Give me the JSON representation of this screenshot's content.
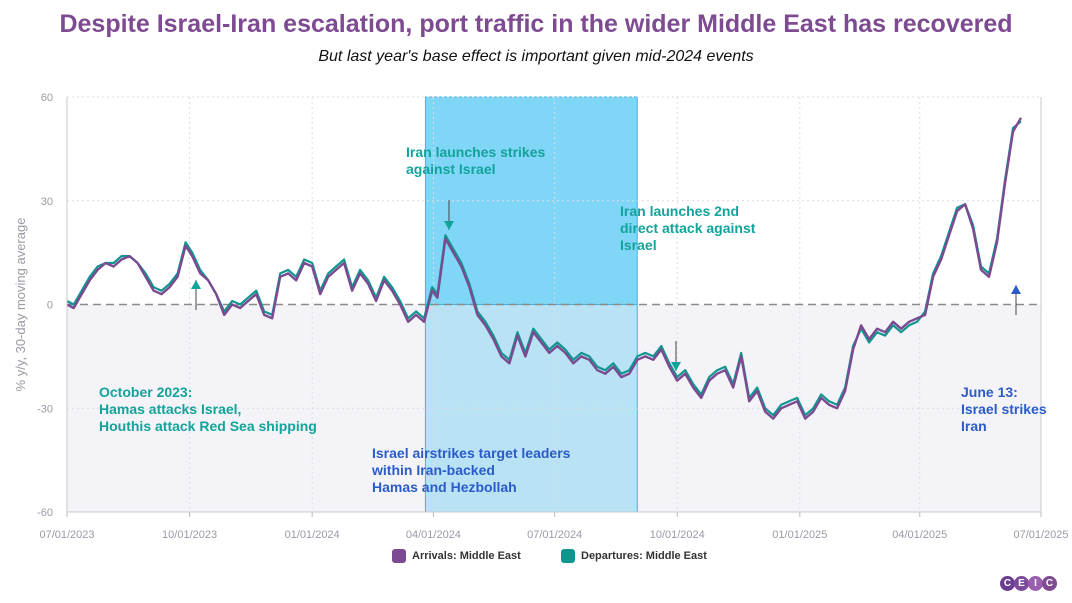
{
  "title": "Despite Israel-Iran escalation, port traffic in the wider Middle East has recovered",
  "subtitle": "But last year's base effect is important given mid-2024 events",
  "colors": {
    "arrivals": "#7b4a91",
    "departures": "#10958f",
    "teal_text": "#12a39a",
    "blue_text": "#2a5bc8",
    "band_top": "#7fd6f7",
    "band_bottom": "#b9e2f4",
    "negative_area": "#f4f4f8"
  },
  "logo": [
    "C",
    "E",
    "I",
    "C"
  ],
  "chart_data": {
    "type": "line",
    "title": "Despite Israel-Iran escalation, port traffic in the wider Middle East has recovered",
    "subtitle": "But last year's base effect is important given mid-2024 events",
    "xlabel": "",
    "ylabel": "% y/y, 30-day moving average",
    "ylim": [
      -60,
      60
    ],
    "yticks": [
      60,
      30,
      0,
      -30,
      -60
    ],
    "xlim": [
      "2023-07-01",
      "2025-07-01"
    ],
    "xticks": [
      "07/01/2023",
      "10/01/2023",
      "01/01/2024",
      "04/01/2024",
      "07/01/2024",
      "10/01/2024",
      "01/01/2025",
      "04/01/2025",
      "07/01/2025"
    ],
    "x_tick_dates": [
      "2023-07-01",
      "2023-10-01",
      "2024-01-01",
      "2024-04-01",
      "2024-07-01",
      "2024-10-01",
      "2025-01-01",
      "2025-04-01",
      "2025-07-01"
    ],
    "grid": true,
    "zero_line": "dashed",
    "legend": "bottom",
    "shaded_period": [
      "2024-03-26",
      "2024-09-01"
    ],
    "series": [
      {
        "name": "Arrivals: Middle East",
        "color": "#7b4a91",
        "points": [
          [
            "2023-07-01",
            0
          ],
          [
            "2023-07-06",
            -1
          ],
          [
            "2023-07-12",
            3
          ],
          [
            "2023-07-18",
            7
          ],
          [
            "2023-07-24",
            10
          ],
          [
            "2023-07-30",
            12
          ],
          [
            "2023-08-05",
            11
          ],
          [
            "2023-08-11",
            13
          ],
          [
            "2023-08-17",
            14
          ],
          [
            "2023-08-23",
            12
          ],
          [
            "2023-08-29",
            8
          ],
          [
            "2023-09-04",
            4
          ],
          [
            "2023-09-10",
            3
          ],
          [
            "2023-09-16",
            5
          ],
          [
            "2023-09-22",
            8
          ],
          [
            "2023-09-28",
            17
          ],
          [
            "2023-10-03",
            14
          ],
          [
            "2023-10-09",
            9
          ],
          [
            "2023-10-15",
            7
          ],
          [
            "2023-10-21",
            3
          ],
          [
            "2023-10-27",
            -3
          ],
          [
            "2023-11-02",
            0
          ],
          [
            "2023-11-08",
            -1
          ],
          [
            "2023-11-14",
            1
          ],
          [
            "2023-11-20",
            3
          ],
          [
            "2023-11-26",
            -3
          ],
          [
            "2023-12-02",
            -4
          ],
          [
            "2023-12-08",
            8
          ],
          [
            "2023-12-14",
            9
          ],
          [
            "2023-12-20",
            7
          ],
          [
            "2023-12-26",
            12
          ],
          [
            "2024-01-01",
            11
          ],
          [
            "2024-01-07",
            3
          ],
          [
            "2024-01-13",
            8
          ],
          [
            "2024-01-19",
            10
          ],
          [
            "2024-01-25",
            12
          ],
          [
            "2024-01-31",
            4
          ],
          [
            "2024-02-06",
            9
          ],
          [
            "2024-02-12",
            6
          ],
          [
            "2024-02-18",
            1
          ],
          [
            "2024-02-24",
            7
          ],
          [
            "2024-03-01",
            4
          ],
          [
            "2024-03-07",
            0
          ],
          [
            "2024-03-13",
            -5
          ],
          [
            "2024-03-19",
            -3
          ],
          [
            "2024-03-25",
            -5
          ],
          [
            "2024-03-31",
            4
          ],
          [
            "2024-04-04",
            2
          ],
          [
            "2024-04-10",
            19
          ],
          [
            "2024-04-16",
            15
          ],
          [
            "2024-04-22",
            11
          ],
          [
            "2024-04-28",
            5
          ],
          [
            "2024-05-04",
            -3
          ],
          [
            "2024-05-10",
            -6
          ],
          [
            "2024-05-16",
            -10
          ],
          [
            "2024-05-22",
            -15
          ],
          [
            "2024-05-28",
            -17
          ],
          [
            "2024-06-03",
            -9
          ],
          [
            "2024-06-09",
            -15
          ],
          [
            "2024-06-15",
            -8
          ],
          [
            "2024-06-21",
            -11
          ],
          [
            "2024-06-27",
            -14
          ],
          [
            "2024-07-03",
            -12
          ],
          [
            "2024-07-09",
            -14
          ],
          [
            "2024-07-15",
            -17
          ],
          [
            "2024-07-21",
            -15
          ],
          [
            "2024-07-27",
            -16
          ],
          [
            "2024-08-02",
            -19
          ],
          [
            "2024-08-08",
            -20
          ],
          [
            "2024-08-14",
            -18
          ],
          [
            "2024-08-20",
            -21
          ],
          [
            "2024-08-26",
            -20
          ],
          [
            "2024-09-01",
            -16
          ],
          [
            "2024-09-07",
            -15
          ],
          [
            "2024-09-13",
            -16
          ],
          [
            "2024-09-19",
            -13
          ],
          [
            "2024-09-25",
            -18
          ],
          [
            "2024-10-01",
            -22
          ],
          [
            "2024-10-07",
            -20
          ],
          [
            "2024-10-13",
            -24
          ],
          [
            "2024-10-19",
            -27
          ],
          [
            "2024-10-25",
            -22
          ],
          [
            "2024-10-31",
            -20
          ],
          [
            "2024-11-06",
            -19
          ],
          [
            "2024-11-12",
            -24
          ],
          [
            "2024-11-18",
            -15
          ],
          [
            "2024-11-24",
            -28
          ],
          [
            "2024-11-30",
            -25
          ],
          [
            "2024-12-06",
            -31
          ],
          [
            "2024-12-12",
            -33
          ],
          [
            "2024-12-18",
            -30
          ],
          [
            "2024-12-24",
            -29
          ],
          [
            "2024-12-30",
            -28
          ],
          [
            "2025-01-05",
            -33
          ],
          [
            "2025-01-11",
            -31
          ],
          [
            "2025-01-17",
            -27
          ],
          [
            "2025-01-23",
            -29
          ],
          [
            "2025-01-29",
            -30
          ],
          [
            "2025-02-04",
            -25
          ],
          [
            "2025-02-10",
            -13
          ],
          [
            "2025-02-16",
            -6
          ],
          [
            "2025-02-22",
            -10
          ],
          [
            "2025-02-28",
            -7
          ],
          [
            "2025-03-06",
            -8
          ],
          [
            "2025-03-12",
            -5
          ],
          [
            "2025-03-18",
            -7
          ],
          [
            "2025-03-24",
            -5
          ],
          [
            "2025-03-30",
            -4
          ],
          [
            "2025-04-05",
            -3
          ],
          [
            "2025-04-11",
            8
          ],
          [
            "2025-04-17",
            13
          ],
          [
            "2025-04-23",
            20
          ],
          [
            "2025-04-29",
            27
          ],
          [
            "2025-05-05",
            29
          ],
          [
            "2025-05-11",
            22
          ],
          [
            "2025-05-17",
            10
          ],
          [
            "2025-05-23",
            8
          ],
          [
            "2025-05-29",
            18
          ],
          [
            "2025-06-04",
            35
          ],
          [
            "2025-06-10",
            50
          ],
          [
            "2025-06-16",
            54
          ]
        ]
      },
      {
        "name": "Departures: Middle East",
        "color": "#10958f",
        "points": [
          [
            "2023-07-01",
            1
          ],
          [
            "2023-07-06",
            0
          ],
          [
            "2023-07-12",
            4
          ],
          [
            "2023-07-18",
            8
          ],
          [
            "2023-07-24",
            11
          ],
          [
            "2023-07-30",
            12
          ],
          [
            "2023-08-05",
            12
          ],
          [
            "2023-08-11",
            14
          ],
          [
            "2023-08-17",
            14
          ],
          [
            "2023-08-23",
            12
          ],
          [
            "2023-08-29",
            9
          ],
          [
            "2023-09-04",
            5
          ],
          [
            "2023-09-10",
            4
          ],
          [
            "2023-09-16",
            6
          ],
          [
            "2023-09-22",
            9
          ],
          [
            "2023-09-28",
            18
          ],
          [
            "2023-10-03",
            15
          ],
          [
            "2023-10-09",
            10
          ],
          [
            "2023-10-15",
            7
          ],
          [
            "2023-10-21",
            3
          ],
          [
            "2023-10-27",
            -2
          ],
          [
            "2023-11-02",
            1
          ],
          [
            "2023-11-08",
            0
          ],
          [
            "2023-11-14",
            2
          ],
          [
            "2023-11-20",
            4
          ],
          [
            "2023-11-26",
            -2
          ],
          [
            "2023-12-02",
            -3
          ],
          [
            "2023-12-08",
            9
          ],
          [
            "2023-12-14",
            10
          ],
          [
            "2023-12-20",
            8
          ],
          [
            "2023-12-26",
            13
          ],
          [
            "2024-01-01",
            12
          ],
          [
            "2024-01-07",
            4
          ],
          [
            "2024-01-13",
            9
          ],
          [
            "2024-01-19",
            11
          ],
          [
            "2024-01-25",
            13
          ],
          [
            "2024-01-31",
            5
          ],
          [
            "2024-02-06",
            10
          ],
          [
            "2024-02-12",
            7
          ],
          [
            "2024-02-18",
            2
          ],
          [
            "2024-02-24",
            8
          ],
          [
            "2024-03-01",
            5
          ],
          [
            "2024-03-07",
            1
          ],
          [
            "2024-03-13",
            -4
          ],
          [
            "2024-03-19",
            -2
          ],
          [
            "2024-03-25",
            -4
          ],
          [
            "2024-03-31",
            5
          ],
          [
            "2024-04-04",
            3
          ],
          [
            "2024-04-10",
            20
          ],
          [
            "2024-04-16",
            16
          ],
          [
            "2024-04-22",
            12
          ],
          [
            "2024-04-28",
            6
          ],
          [
            "2024-05-04",
            -2
          ],
          [
            "2024-05-10",
            -5
          ],
          [
            "2024-05-16",
            -9
          ],
          [
            "2024-05-22",
            -14
          ],
          [
            "2024-05-28",
            -16
          ],
          [
            "2024-06-03",
            -8
          ],
          [
            "2024-06-09",
            -14
          ],
          [
            "2024-06-15",
            -7
          ],
          [
            "2024-06-21",
            -10
          ],
          [
            "2024-06-27",
            -13
          ],
          [
            "2024-07-03",
            -11
          ],
          [
            "2024-07-09",
            -13
          ],
          [
            "2024-07-15",
            -16
          ],
          [
            "2024-07-21",
            -14
          ],
          [
            "2024-07-27",
            -15
          ],
          [
            "2024-08-02",
            -18
          ],
          [
            "2024-08-08",
            -19
          ],
          [
            "2024-08-14",
            -17
          ],
          [
            "2024-08-20",
            -20
          ],
          [
            "2024-08-26",
            -19
          ],
          [
            "2024-09-01",
            -15
          ],
          [
            "2024-09-07",
            -14
          ],
          [
            "2024-09-13",
            -15
          ],
          [
            "2024-09-19",
            -12
          ],
          [
            "2024-09-25",
            -17
          ],
          [
            "2024-10-01",
            -21
          ],
          [
            "2024-10-07",
            -19
          ],
          [
            "2024-10-13",
            -23
          ],
          [
            "2024-10-19",
            -26
          ],
          [
            "2024-10-25",
            -21
          ],
          [
            "2024-10-31",
            -19
          ],
          [
            "2024-11-06",
            -18
          ],
          [
            "2024-11-12",
            -23
          ],
          [
            "2024-11-18",
            -14
          ],
          [
            "2024-11-24",
            -27
          ],
          [
            "2024-11-30",
            -24
          ],
          [
            "2024-12-06",
            -30
          ],
          [
            "2024-12-12",
            -32
          ],
          [
            "2024-12-18",
            -29
          ],
          [
            "2024-12-24",
            -28
          ],
          [
            "2024-12-30",
            -27
          ],
          [
            "2025-01-05",
            -32
          ],
          [
            "2025-01-11",
            -30
          ],
          [
            "2025-01-17",
            -26
          ],
          [
            "2025-01-23",
            -28
          ],
          [
            "2025-01-29",
            -29
          ],
          [
            "2025-02-04",
            -24
          ],
          [
            "2025-02-10",
            -12
          ],
          [
            "2025-02-16",
            -7
          ],
          [
            "2025-02-22",
            -11
          ],
          [
            "2025-02-28",
            -8
          ],
          [
            "2025-03-06",
            -9
          ],
          [
            "2025-03-12",
            -6
          ],
          [
            "2025-03-18",
            -8
          ],
          [
            "2025-03-24",
            -6
          ],
          [
            "2025-03-30",
            -5
          ],
          [
            "2025-04-05",
            -2
          ],
          [
            "2025-04-11",
            9
          ],
          [
            "2025-04-17",
            14
          ],
          [
            "2025-04-23",
            21
          ],
          [
            "2025-04-29",
            28
          ],
          [
            "2025-05-05",
            29
          ],
          [
            "2025-05-11",
            23
          ],
          [
            "2025-05-17",
            11
          ],
          [
            "2025-05-23",
            9
          ],
          [
            "2025-05-29",
            19
          ],
          [
            "2025-06-04",
            36
          ],
          [
            "2025-06-10",
            51
          ],
          [
            "2025-06-16",
            53
          ]
        ]
      }
    ],
    "annotations": [
      {
        "id": "oct2023",
        "lines": [
          "October 2023:",
          "Hamas attacks Israel,",
          "Houthis attack Red Sea shipping"
        ],
        "color": "teal",
        "arrow_date": "2023-10-09",
        "arrow_dir": "up"
      },
      {
        "id": "iran1",
        "lines": [
          "Iran launches strikes",
          "against Israel"
        ],
        "color": "teal",
        "arrow_date": "2024-04-14",
        "arrow_dir": "down"
      },
      {
        "id": "iran2",
        "lines": [
          "Iran launches 2nd",
          "direct attack against",
          "Israel"
        ],
        "color": "teal",
        "arrow_date": "2024-10-01",
        "arrow_dir": "down"
      },
      {
        "id": "airstrikes",
        "lines": [
          "Israel airstrikes target leaders",
          "within Iran-backed",
          "Hamas and Hezbollah"
        ],
        "color": "blue"
      },
      {
        "id": "june13",
        "lines": [
          "June 13:",
          "Israel strikes",
          "Iran"
        ],
        "color": "blue",
        "arrow_date": "2025-06-13",
        "arrow_dir": "up"
      }
    ]
  }
}
